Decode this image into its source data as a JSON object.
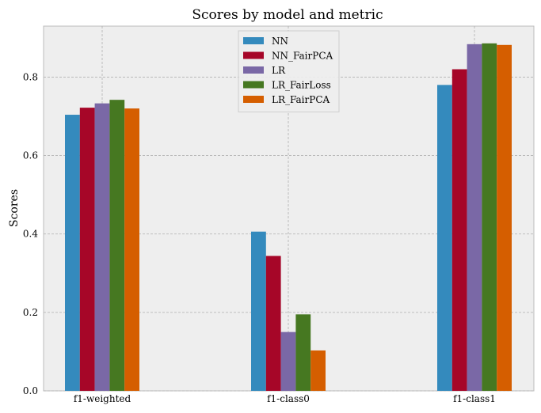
{
  "chart_data": {
    "type": "bar",
    "title": "Scores by model and metric",
    "xlabel": "",
    "ylabel": "Scores",
    "categories": [
      "f1-weighted",
      "f1-class0",
      "f1-class1"
    ],
    "ylim": [
      0,
      0.93
    ],
    "yticks": [
      "0.0",
      "0.2",
      "0.4",
      "0.6",
      "0.8"
    ],
    "grid": true,
    "legend_position": "top-center",
    "series": [
      {
        "name": "NN",
        "color": "#348ABD",
        "values": [
          0.704,
          0.406,
          0.78
        ]
      },
      {
        "name": "NN_FairPCA",
        "color": "#A60628",
        "values": [
          0.722,
          0.344,
          0.82
        ]
      },
      {
        "name": "LR",
        "color": "#7A68A6",
        "values": [
          0.733,
          0.15,
          0.884
        ]
      },
      {
        "name": "LR_FairLoss",
        "color": "#467821",
        "values": [
          0.742,
          0.195,
          0.886
        ]
      },
      {
        "name": "LR_FairPCA",
        "color": "#D55E00",
        "values": [
          0.72,
          0.103,
          0.882
        ]
      }
    ]
  }
}
